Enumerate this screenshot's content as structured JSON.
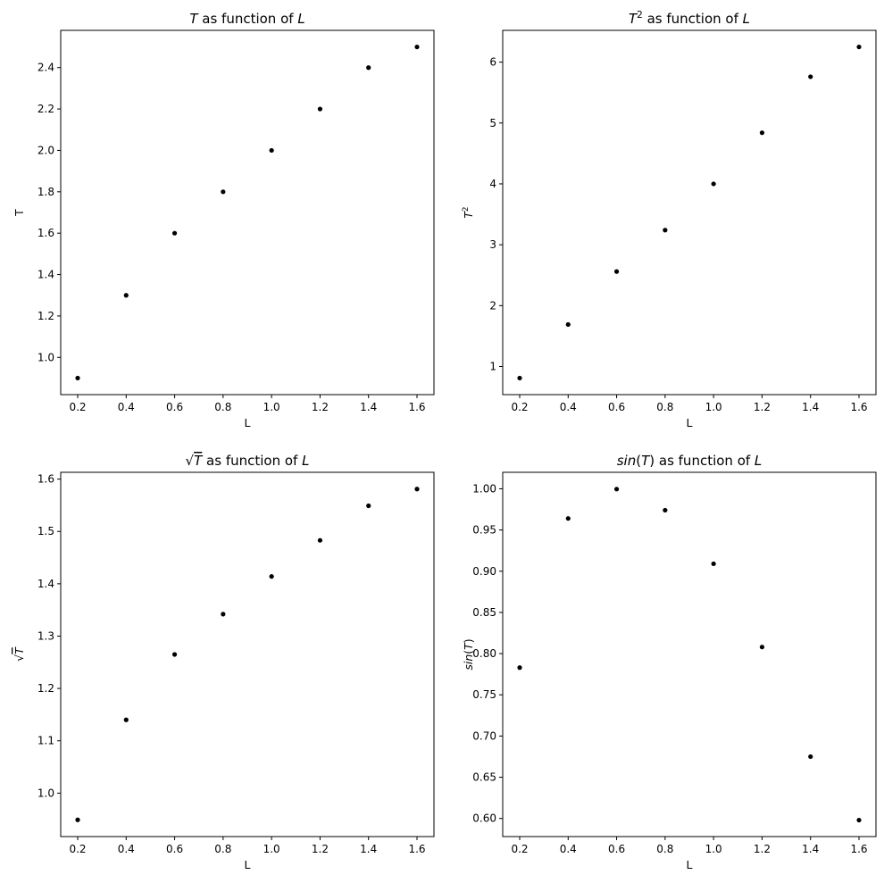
{
  "chart_data": [
    {
      "type": "scatter",
      "title": {
        "parts": [
          [
            "T",
            true
          ],
          [
            " as function of ",
            false
          ],
          [
            "L",
            true
          ]
        ]
      },
      "xlabel": {
        "parts": [
          [
            "L",
            false
          ]
        ]
      },
      "ylabel": {
        "parts": [
          [
            "T",
            false
          ]
        ]
      },
      "x": [
        0.2,
        0.4,
        0.6,
        0.8,
        1.0,
        1.2,
        1.4,
        1.6
      ],
      "y": [
        0.9,
        1.3,
        1.6,
        1.8,
        2.0,
        2.2,
        2.4,
        2.5
      ],
      "xlim": [
        0.13,
        1.67
      ],
      "ylim": [
        0.82,
        2.58
      ],
      "xticks": [
        0.2,
        0.4,
        0.6,
        0.8,
        1.0,
        1.2,
        1.4,
        1.6
      ],
      "xtick_labels": [
        "0.2",
        "0.4",
        "0.6",
        "0.8",
        "1.0",
        "1.2",
        "1.4",
        "1.6"
      ],
      "yticks": [
        1.0,
        1.2,
        1.4,
        1.6,
        1.8,
        2.0,
        2.2,
        2.4
      ],
      "ytick_labels": [
        "1.0",
        "1.2",
        "1.4",
        "1.6",
        "1.8",
        "2.0",
        "2.2",
        "2.4"
      ],
      "marker_color": "#000000",
      "grid": false
    },
    {
      "type": "scatter",
      "title": {
        "parts": [
          [
            "T",
            true
          ],
          [
            "2",
            false,
            "sup"
          ],
          [
            " as function of ",
            false
          ],
          [
            "L",
            true
          ]
        ]
      },
      "xlabel": {
        "parts": [
          [
            "L",
            false
          ]
        ]
      },
      "ylabel": {
        "parts": [
          [
            "T",
            true
          ],
          [
            "2",
            false,
            "sup"
          ]
        ]
      },
      "x": [
        0.2,
        0.4,
        0.6,
        0.8,
        1.0,
        1.2,
        1.4,
        1.6
      ],
      "y": [
        0.81,
        1.69,
        2.56,
        3.24,
        4.0,
        4.84,
        5.76,
        6.25
      ],
      "xlim": [
        0.13,
        1.67
      ],
      "ylim": [
        0.538,
        6.522
      ],
      "xticks": [
        0.2,
        0.4,
        0.6,
        0.8,
        1.0,
        1.2,
        1.4,
        1.6
      ],
      "xtick_labels": [
        "0.2",
        "0.4",
        "0.6",
        "0.8",
        "1.0",
        "1.2",
        "1.4",
        "1.6"
      ],
      "yticks": [
        1,
        2,
        3,
        4,
        5,
        6
      ],
      "ytick_labels": [
        "1",
        "2",
        "3",
        "4",
        "5",
        "6"
      ],
      "marker_color": "#000000",
      "grid": false
    },
    {
      "type": "scatter",
      "title": {
        "parts": [
          [
            "√",
            false
          ],
          [
            "T",
            true,
            "over"
          ],
          [
            " as function of ",
            false
          ],
          [
            "L",
            true
          ]
        ]
      },
      "xlabel": {
        "parts": [
          [
            "L",
            false
          ]
        ]
      },
      "ylabel": {
        "parts": [
          [
            "√",
            false
          ],
          [
            "T",
            true,
            "over"
          ]
        ]
      },
      "x": [
        0.2,
        0.4,
        0.6,
        0.8,
        1.0,
        1.2,
        1.4,
        1.6
      ],
      "y": [
        0.949,
        1.14,
        1.265,
        1.342,
        1.414,
        1.483,
        1.549,
        1.581
      ],
      "xlim": [
        0.13,
        1.67
      ],
      "ylim": [
        0.917,
        1.613
      ],
      "xticks": [
        0.2,
        0.4,
        0.6,
        0.8,
        1.0,
        1.2,
        1.4,
        1.6
      ],
      "xtick_labels": [
        "0.2",
        "0.4",
        "0.6",
        "0.8",
        "1.0",
        "1.2",
        "1.4",
        "1.6"
      ],
      "yticks": [
        1.0,
        1.1,
        1.2,
        1.3,
        1.4,
        1.5,
        1.6
      ],
      "ytick_labels": [
        "1.0",
        "1.1",
        "1.2",
        "1.3",
        "1.4",
        "1.5",
        "1.6"
      ],
      "marker_color": "#000000",
      "grid": false
    },
    {
      "type": "scatter",
      "title": {
        "parts": [
          [
            "sin",
            true
          ],
          [
            "(",
            false
          ],
          [
            "T",
            true
          ],
          [
            ")",
            false
          ],
          [
            " as function of ",
            false
          ],
          [
            "L",
            true
          ]
        ]
      },
      "xlabel": {
        "parts": [
          [
            "L",
            false
          ]
        ]
      },
      "ylabel": {
        "parts": [
          [
            "sin",
            true
          ],
          [
            "(",
            false
          ],
          [
            "T",
            true
          ],
          [
            ")",
            false
          ]
        ]
      },
      "x": [
        0.2,
        0.4,
        0.6,
        0.8,
        1.0,
        1.2,
        1.4,
        1.6
      ],
      "y": [
        0.783,
        0.964,
        0.9996,
        0.974,
        0.909,
        0.808,
        0.675,
        0.598
      ],
      "xlim": [
        0.13,
        1.67
      ],
      "ylim": [
        0.578,
        1.02
      ],
      "xticks": [
        0.2,
        0.4,
        0.6,
        0.8,
        1.0,
        1.2,
        1.4,
        1.6
      ],
      "xtick_labels": [
        "0.2",
        "0.4",
        "0.6",
        "0.8",
        "1.0",
        "1.2",
        "1.4",
        "1.6"
      ],
      "yticks": [
        0.6,
        0.65,
        0.7,
        0.75,
        0.8,
        0.85,
        0.9,
        0.95,
        1.0
      ],
      "ytick_labels": [
        "0.60",
        "0.65",
        "0.70",
        "0.75",
        "0.80",
        "0.85",
        "0.90",
        "0.95",
        "1.00"
      ],
      "marker_color": "#000000",
      "grid": false
    }
  ]
}
